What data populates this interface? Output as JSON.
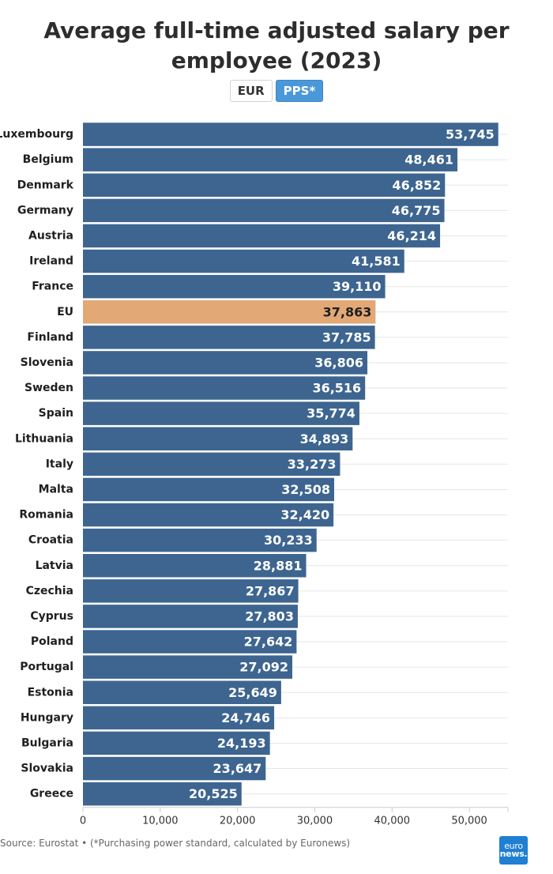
{
  "title": "Average full-time adjusted salary per employee (2023)",
  "toggle": {
    "eur_label": "EUR",
    "pps_label": "PPS*",
    "selected": "PPS*"
  },
  "colors": {
    "bar": "#3d6590",
    "highlight": "#e2a976",
    "toggle_active": "#4a97d9",
    "logo": "#1f7fd2"
  },
  "chart_data": {
    "type": "bar",
    "orientation": "horizontal",
    "title": "Average full-time adjusted salary per employee (2023)",
    "xlabel": "",
    "ylabel": "",
    "xlim": [
      0,
      55000
    ],
    "x_ticks": [
      0,
      10000,
      20000,
      30000,
      40000,
      50000
    ],
    "x_tick_labels": [
      "0",
      "10,000",
      "20,000",
      "30,000",
      "40,000",
      "50,000"
    ],
    "grid": true,
    "highlight_category": "EU",
    "categories": [
      "Luxembourg",
      "Belgium",
      "Denmark",
      "Germany",
      "Austria",
      "Ireland",
      "France",
      "EU",
      "Finland",
      "Slovenia",
      "Sweden",
      "Spain",
      "Lithuania",
      "Italy",
      "Malta",
      "Romania",
      "Croatia",
      "Latvia",
      "Czechia",
      "Cyprus",
      "Poland",
      "Portugal",
      "Estonia",
      "Hungary",
      "Bulgaria",
      "Slovakia",
      "Greece"
    ],
    "values": [
      53745,
      48461,
      46852,
      46775,
      46214,
      41581,
      39110,
      37863,
      37785,
      36806,
      36516,
      35774,
      34893,
      33273,
      32508,
      32420,
      30233,
      28881,
      27867,
      27803,
      27642,
      27092,
      25649,
      24746,
      24193,
      23647,
      20525
    ],
    "value_labels": [
      "53,745",
      "48,461",
      "46,852",
      "46,775",
      "46,214",
      "41,581",
      "39,110",
      "37,863",
      "37,785",
      "36,806",
      "36,516",
      "35,774",
      "34,893",
      "33,273",
      "32,508",
      "32,420",
      "30,233",
      "28,881",
      "27,867",
      "27,803",
      "27,642",
      "27,092",
      "25,649",
      "24,746",
      "24,193",
      "23,647",
      "20,525"
    ]
  },
  "footer": {
    "source": "Source: Eurostat • (*Purchasing power standard, calculated by Euronews)",
    "logo_line1": "euro",
    "logo_line2": "news."
  }
}
